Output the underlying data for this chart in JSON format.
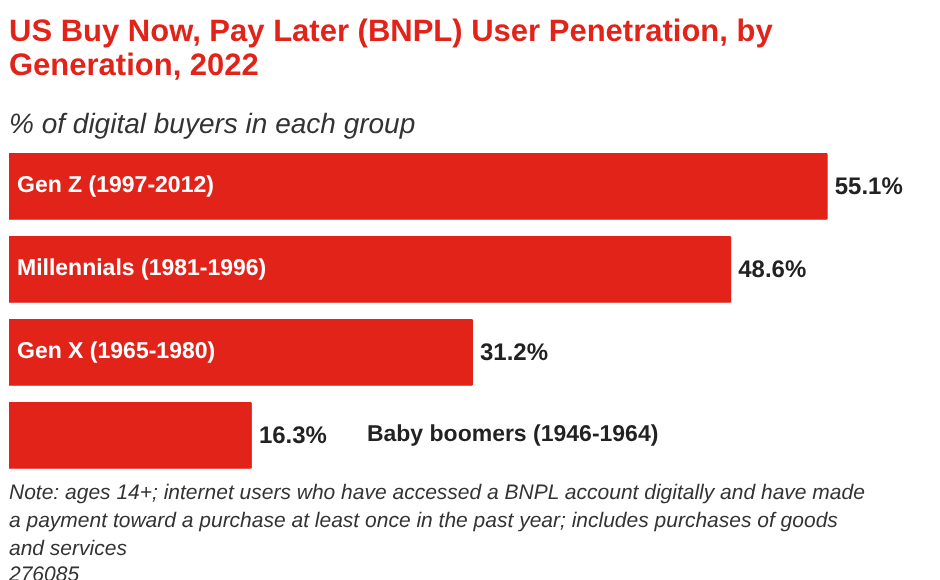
{
  "chart_data": {
    "type": "bar",
    "orientation": "horizontal",
    "title": "US Buy Now, Pay Later (BNPL) User Penetration, by Generation, 2022",
    "subtitle": "% of digital buyers in each group",
    "categories": [
      "Gen Z (1997-2012)",
      "Millennials (1981-1996)",
      "Gen X (1965-1980)",
      "Baby boomers (1946-1964)"
    ],
    "values": [
      55.1,
      48.6,
      31.2,
      16.3
    ],
    "value_labels": [
      "55.1%",
      "48.6%",
      "31.2%",
      "16.3%"
    ],
    "color": "#e2231a",
    "annotations": [
      "Note: ages 14+; internet users who have accessed a BNPL account digitally and have made a payment toward a purchase at least once in the past year; includes purchases of goods and services",
      "276085"
    ]
  }
}
